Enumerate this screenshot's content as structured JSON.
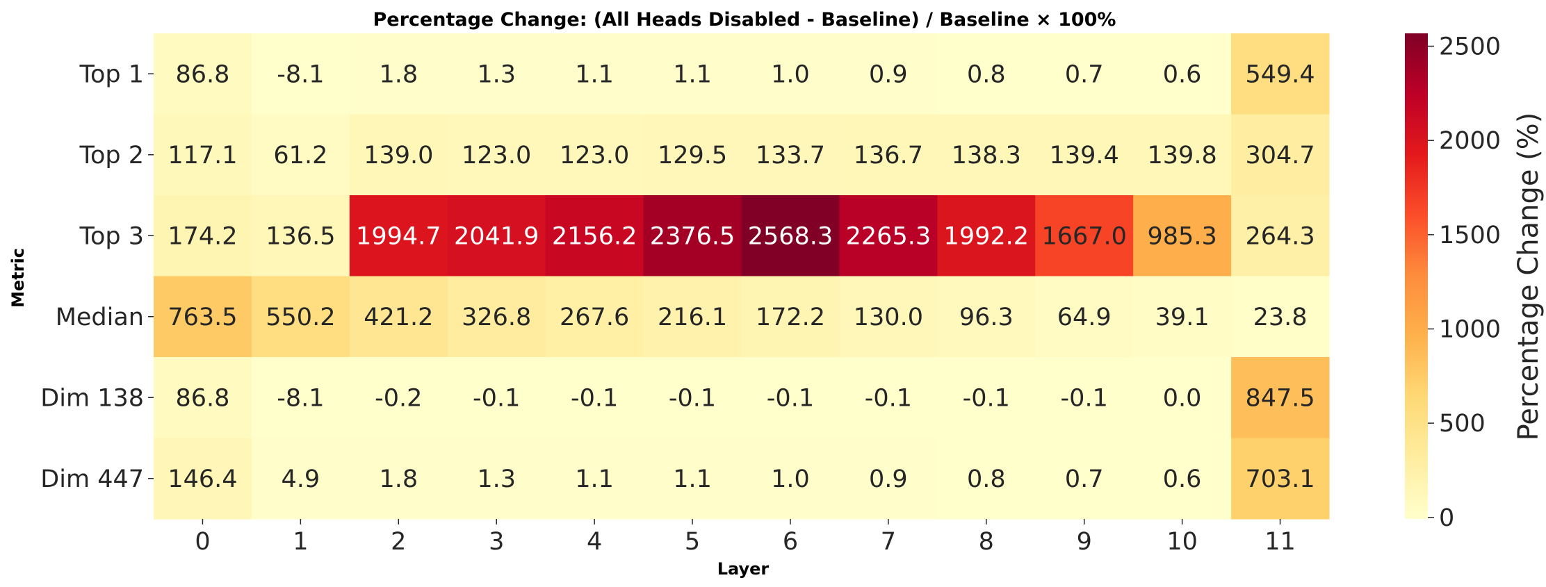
{
  "chart_data": {
    "type": "heatmap",
    "title": "Percentage Change: (All Heads Disabled - Baseline) / Baseline × 100%",
    "xlabel": "Layer",
    "ylabel": "Metric",
    "x_categories": [
      "0",
      "1",
      "2",
      "3",
      "4",
      "5",
      "6",
      "7",
      "8",
      "9",
      "10",
      "11"
    ],
    "y_categories": [
      "Top 1",
      "Top 2",
      "Top 3",
      "Median",
      "Dim 138",
      "Dim 447"
    ],
    "values": [
      [
        86.8,
        -8.1,
        1.8,
        1.3,
        1.1,
        1.1,
        1.0,
        0.9,
        0.8,
        0.7,
        0.6,
        549.4
      ],
      [
        117.1,
        61.2,
        139.0,
        123.0,
        123.0,
        129.5,
        133.7,
        136.7,
        138.3,
        139.4,
        139.8,
        304.7
      ],
      [
        174.2,
        136.5,
        1994.7,
        2041.9,
        2156.2,
        2376.5,
        2568.3,
        2265.3,
        1992.2,
        1667.0,
        985.3,
        264.3
      ],
      [
        763.5,
        550.2,
        421.2,
        326.8,
        267.6,
        216.1,
        172.2,
        130.0,
        96.3,
        64.9,
        39.1,
        23.8
      ],
      [
        86.8,
        -8.1,
        -0.2,
        -0.1,
        -0.1,
        -0.1,
        -0.1,
        -0.1,
        -0.1,
        -0.1,
        0.0,
        847.5
      ],
      [
        146.4,
        4.9,
        1.8,
        1.3,
        1.1,
        1.1,
        1.0,
        0.9,
        0.8,
        0.7,
        0.6,
        703.1
      ]
    ],
    "cell_labels": [
      [
        "86.8",
        "-8.1",
        "1.8",
        "1.3",
        "1.1",
        "1.1",
        "1.0",
        "0.9",
        "0.8",
        "0.7",
        "0.6",
        "549.4"
      ],
      [
        "117.1",
        "61.2",
        "139.0",
        "123.0",
        "123.0",
        "129.5",
        "133.7",
        "136.7",
        "138.3",
        "139.4",
        "139.8",
        "304.7"
      ],
      [
        "174.2",
        "136.5",
        "1994.7",
        "2041.9",
        "2156.2",
        "2376.5",
        "2568.3",
        "2265.3",
        "1992.2",
        "1667.0",
        "985.3",
        "264.3"
      ],
      [
        "763.5",
        "550.2",
        "421.2",
        "326.8",
        "267.6",
        "216.1",
        "172.2",
        "130.0",
        "96.3",
        "64.9",
        "39.1",
        "23.8"
      ],
      [
        "86.8",
        "-8.1",
        "-0.2",
        "-0.1",
        "-0.1",
        "-0.1",
        "-0.1",
        "-0.1",
        "-0.1",
        "-0.1",
        "0.0",
        "847.5"
      ],
      [
        "146.4",
        "4.9",
        "1.8",
        "1.3",
        "1.1",
        "1.1",
        "1.0",
        "0.9",
        "0.8",
        "0.7",
        "0.6",
        "703.1"
      ]
    ],
    "colormap": "YlOrRd",
    "color_range": [
      -8.1,
      2568.3
    ],
    "colorbar": {
      "label": "Percentage Change (%)",
      "ticks": [
        0,
        500,
        1000,
        1500,
        2000,
        2500
      ],
      "tick_labels": [
        "0",
        "500",
        "1000",
        "1500",
        "2000",
        "2500"
      ]
    },
    "grid": false,
    "legend": "colorbar-right",
    "text_colors": {
      "dark": "#262626",
      "light": "#ffffff"
    }
  }
}
